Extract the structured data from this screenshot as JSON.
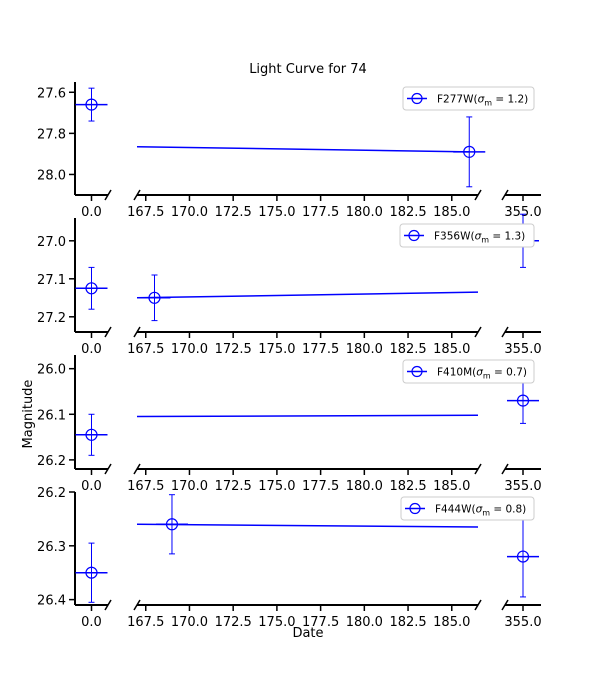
{
  "chart_data": {
    "type": "line",
    "title": "Light Curve for 74",
    "xlabel": "Date",
    "ylabel": "Magnitude",
    "x_segments": [
      {
        "range": [
          -1.0,
          1.0
        ],
        "ticks": [
          0.0
        ],
        "tick_labels": [
          "0.0"
        ]
      },
      {
        "range": [
          167.0,
          186.5
        ],
        "ticks": [
          167.5,
          170.0,
          172.5,
          175.0,
          177.5,
          180.0,
          182.5,
          185.0
        ],
        "tick_labels": [
          "167.5",
          "170.0",
          "172.5",
          "175.0",
          "177.5",
          "180.0",
          "182.5",
          "185.0"
        ]
      },
      {
        "range": [
          354.0,
          356.0
        ],
        "ticks": [
          355.0
        ],
        "tick_labels": [
          "355.0"
        ]
      }
    ],
    "panels": [
      {
        "legend": "F277W(σ_m = 1.2)",
        "legend_parts": {
          "band": "F277W",
          "sigma": "1.2"
        },
        "y_inverted": true,
        "ylim": [
          28.1,
          27.55
        ],
        "yticks": [
          27.6,
          27.8,
          28.0
        ],
        "ytick_labels": [
          "27.6",
          "27.8",
          "28.0"
        ],
        "points": [
          {
            "x": 0.0,
            "y": 27.66,
            "yerr": 0.08
          },
          {
            "x": 186.0,
            "y": 27.89,
            "yerr": 0.17
          }
        ],
        "trend": {
          "x": [
            167.0,
            186.0
          ],
          "y": [
            27.865,
            27.89
          ]
        }
      },
      {
        "legend": "F356W(σ_m = 1.3)",
        "legend_parts": {
          "band": "F356W",
          "sigma": "1.3"
        },
        "y_inverted": true,
        "ylim": [
          27.24,
          26.94
        ],
        "yticks": [
          27.0,
          27.1,
          27.2
        ],
        "ytick_labels": [
          "27.0",
          "27.1",
          "27.2"
        ],
        "points": [
          {
            "x": 0.0,
            "y": 27.125,
            "yerr": 0.055
          },
          {
            "x": 168.0,
            "y": 27.15,
            "yerr": 0.06
          },
          {
            "x": 355.0,
            "y": 27.0,
            "yerr": 0.07
          }
        ],
        "trend": {
          "x": [
            167.0,
            186.5
          ],
          "y": [
            27.15,
            27.135
          ]
        }
      },
      {
        "legend": "F410M(σ_m = 0.7)",
        "legend_parts": {
          "band": "F410M",
          "sigma": "0.7"
        },
        "y_inverted": true,
        "ylim": [
          26.22,
          25.97
        ],
        "yticks": [
          26.0,
          26.1,
          26.2
        ],
        "ytick_labels": [
          "26.0",
          "26.1",
          "26.2"
        ],
        "points": [
          {
            "x": 0.0,
            "y": 26.145,
            "yerr": 0.045
          },
          {
            "x": 355.0,
            "y": 26.07,
            "yerr": 0.05
          }
        ],
        "trend": {
          "x": [
            167.0,
            186.5
          ],
          "y": [
            26.105,
            26.102
          ]
        }
      },
      {
        "legend": "F444W(σ_m = 0.8)",
        "legend_parts": {
          "band": "F444W",
          "sigma": "0.8"
        },
        "y_inverted": true,
        "ylim": [
          26.41,
          26.2
        ],
        "yticks": [
          26.2,
          26.3,
          26.4
        ],
        "ytick_labels": [
          "26.2",
          "26.3",
          "26.4"
        ],
        "points": [
          {
            "x": 0.0,
            "y": 26.35,
            "yerr": 0.055
          },
          {
            "x": 169.0,
            "y": 26.26,
            "yerr": 0.055
          },
          {
            "x": 355.0,
            "y": 26.32,
            "yerr": 0.075
          }
        ],
        "trend": {
          "x": [
            167.0,
            186.5
          ],
          "y": [
            26.26,
            26.265
          ]
        }
      }
    ],
    "colors": {
      "series": "#0000ff",
      "axis": "#000000"
    },
    "legend_position": "upper right",
    "grid": false
  }
}
